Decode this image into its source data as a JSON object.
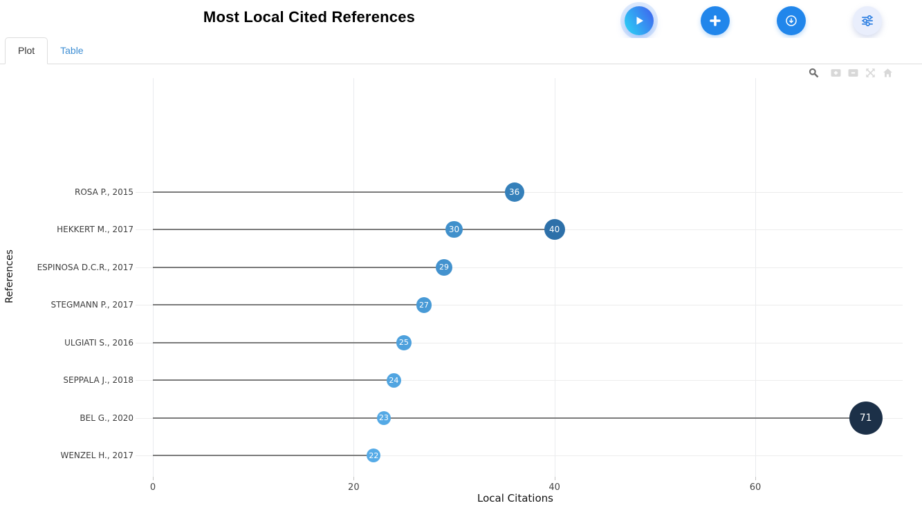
{
  "header": {
    "title": "Most Local Cited References",
    "buttons": [
      {
        "name": "run",
        "icon": "play-icon"
      },
      {
        "name": "add",
        "icon": "plus-icon"
      },
      {
        "name": "download",
        "icon": "download-circle-icon"
      },
      {
        "name": "filters",
        "icon": "sliders-icon"
      }
    ]
  },
  "tabs": [
    {
      "label": "Plot",
      "active": true
    },
    {
      "label": "Table",
      "active": false
    }
  ],
  "modebar": [
    "zoom-icon",
    "zoom-in-icon",
    "zoom-out-icon",
    "autoscale-icon",
    "reset-axes-icon"
  ],
  "colors": {
    "accent_blue": "#2186eb",
    "play_gradient_start": "#2bd1f5",
    "play_gradient_end": "#3f64ee",
    "light_button_bg": "#e9eefc",
    "tab_link": "#3c8dd3",
    "stem": "#7a7a7a",
    "gridline": "#ececec",
    "axis_text": "#444444",
    "marker_min": "#56abe7",
    "marker_max": "#1c3048"
  },
  "chart_data": {
    "type": "scatter",
    "subtype": "horizontal-lollipop",
    "title": "Most Local Cited References",
    "xlabel": "Local Citations",
    "ylabel": "References",
    "xlim": [
      0,
      74.6
    ],
    "xticks": [
      0,
      20,
      40,
      60
    ],
    "grid": true,
    "legend": false,
    "value_range": [
      22,
      71
    ],
    "marker_size_range": [
      20,
      48
    ],
    "categories": [
      "ROSA P., 2015",
      "HEKKERT M., 2017",
      "ESPINOSA D.C.R., 2017",
      "STEGMANN P., 2017",
      "ULGIATI S., 2016",
      "SEPPALA J., 2018",
      "BEL G., 2020",
      "WENZEL H., 2017"
    ],
    "points": [
      {
        "category": "ROSA P., 2015",
        "value": 36,
        "color": "#3580ba"
      },
      {
        "category": "HEKKERT M., 2017",
        "value": 30,
        "color": "#4090cb"
      },
      {
        "category": "HEKKERT M., 2017",
        "value": 40,
        "color": "#2d70a9"
      },
      {
        "category": "ESPINOSA D.C.R., 2017",
        "value": 29,
        "color": "#4392ce"
      },
      {
        "category": "STEGMANN P., 2017",
        "value": 27,
        "color": "#489ad6"
      },
      {
        "category": "ULGIATI S., 2016",
        "value": 25,
        "color": "#4ea1dd"
      },
      {
        "category": "SEPPALA J., 2018",
        "value": 24,
        "color": "#51a5e1"
      },
      {
        "category": "BEL G., 2020",
        "value": 23,
        "color": "#54a9e5"
      },
      {
        "category": "BEL G., 2020",
        "value": 71,
        "color": "#1c3048"
      },
      {
        "category": "WENZEL H., 2017",
        "value": 22,
        "color": "#56abe7"
      }
    ]
  }
}
